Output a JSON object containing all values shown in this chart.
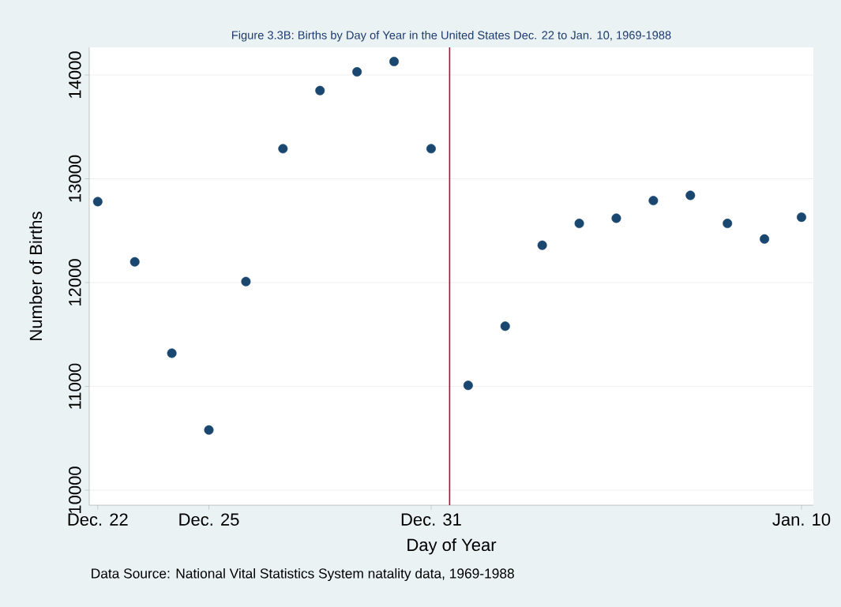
{
  "chart_data": {
    "type": "scatter",
    "title": "Figure 3.3B: Births by Day of Year in the United States Dec. 22 to Jan. 10, 1969-1988",
    "xlabel": "Day of Year",
    "ylabel": "Number of Births",
    "annotations": [
      "Data Source: National Vital Statistics System natality data, 1969-1988"
    ],
    "categories": [
      "Dec. 22",
      null,
      null,
      "Dec. 25",
      null,
      null,
      null,
      null,
      null,
      "Dec. 31",
      null,
      null,
      null,
      null,
      null,
      null,
      null,
      null,
      null,
      "Jan. 10"
    ],
    "series": [
      {
        "color": "#1a476f",
        "values": [
          12780,
          12200,
          11320,
          10580,
          12010,
          13290,
          13850,
          14030,
          14130,
          13290,
          11010,
          11580,
          12360,
          12570,
          12620,
          12790,
          12840,
          12570,
          12420,
          12630
        ]
      }
    ],
    "ylim": [
      9856,
      14266
    ],
    "yticks": [
      10000,
      11000,
      12000,
      13000,
      14000
    ],
    "grid": "y",
    "marker": "circle"
  }
}
